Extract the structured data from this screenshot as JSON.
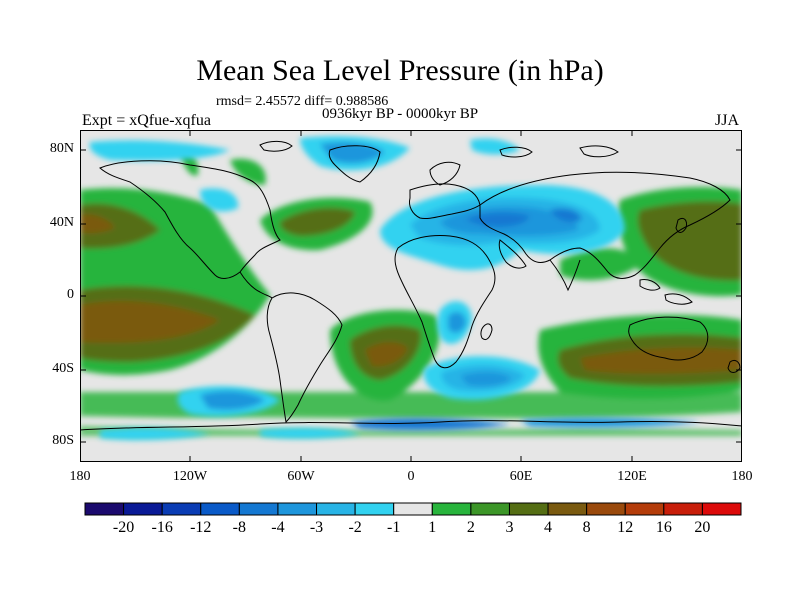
{
  "title": "Mean Sea Level Pressure (in hPa)",
  "stats": "rmsd= 2.45572  diff= 0.988586",
  "experiment": "Expt = xQfue-xqfua",
  "period": "0936kyr BP - 0000kyr BP",
  "season": "JJA",
  "axes": {
    "y_ticks": [
      "80N",
      "40N",
      "0",
      "40S",
      "80S"
    ],
    "x_ticks": [
      "180",
      "120W",
      "60W",
      "0",
      "60E",
      "120E",
      "180"
    ]
  },
  "colorbar": {
    "labels": [
      "-20",
      "-16",
      "-12",
      "-8",
      "-4",
      "-3",
      "-2",
      "-1",
      "1",
      "2",
      "3",
      "4",
      "8",
      "12",
      "16",
      "20"
    ],
    "colors": [
      "#1b0a6e",
      "#0a1a96",
      "#0a3cb4",
      "#0a5ac8",
      "#1478d2",
      "#1e96dc",
      "#28b4e6",
      "#32d2f0",
      "#e6e6e6",
      "#28b43c",
      "#3c9628",
      "#556e14",
      "#7a5a10",
      "#9a4a0c",
      "#b43c0a",
      "#c81e0a",
      "#dc0a0a"
    ]
  }
}
